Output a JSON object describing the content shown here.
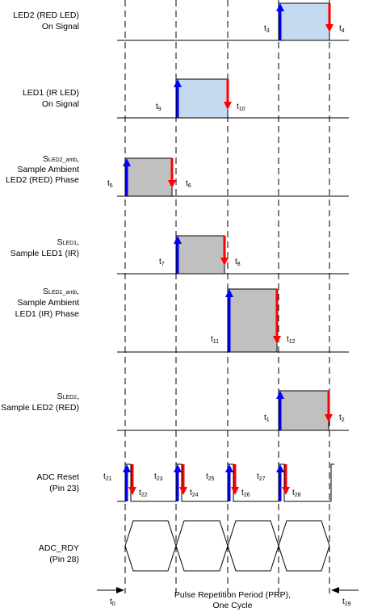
{
  "rows": [
    {
      "id": "led2",
      "label": [
        "LED2 (RED LED)",
        "On Signal"
      ],
      "fill": "#c5d9f1",
      "t_rise": "3",
      "t_fall": "4"
    },
    {
      "id": "led1",
      "label": [
        "LED1 (IR LED)",
        "On Signal"
      ],
      "fill": "#c5d9f1",
      "t_rise": "9",
      "t_fall": "10"
    },
    {
      "id": "sled2amb",
      "label": [
        "Sample Ambient",
        "LED2 (RED) Phase"
      ],
      "label_s": {
        "main": "S",
        "sub": "LED2_amb",
        "suffix": ","
      },
      "fill": "#c0c0c0",
      "t_rise": "5",
      "t_fall": "6"
    },
    {
      "id": "sled1",
      "label": [
        "Sample LED1 (IR)"
      ],
      "label_s": {
        "main": "S",
        "sub": "LED1",
        "suffix": ","
      },
      "fill": "#c0c0c0",
      "t_rise": "7",
      "t_fall": "8"
    },
    {
      "id": "sled1amb",
      "label": [
        "Sample Ambient",
        "LED1 (IR) Phase"
      ],
      "label_s": {
        "main": "S",
        "sub": "LED1_amb",
        "suffix": ","
      },
      "fill": "#c0c0c0",
      "t_rise": "11",
      "t_fall": "12"
    },
    {
      "id": "sled2",
      "label": [
        "Sample LED2 (RED)"
      ],
      "label_s": {
        "main": "S",
        "sub": "LED2",
        "suffix": ","
      },
      "fill": "#c0c0c0",
      "t_rise": "1",
      "t_fall": "2"
    }
  ],
  "adc_reset": {
    "label": [
      "ADC Reset",
      "(Pin 23)"
    ],
    "pulses": [
      {
        "r": "21",
        "f": "22"
      },
      {
        "r": "23",
        "f": "24"
      },
      {
        "r": "25",
        "f": "26"
      },
      {
        "r": "27",
        "f": "28"
      }
    ]
  },
  "adc_rdy": {
    "label": [
      "ADC_RDY",
      "(Pin 28)"
    ]
  },
  "prp": {
    "label": [
      "Pulse Repetition Period (PRP),",
      "One Cycle"
    ],
    "t_start": "0",
    "t_end": "29"
  },
  "colors": {
    "rise_arrow": "#0000ff",
    "fall_arrow": "#ff0000",
    "dash": "#000000"
  }
}
